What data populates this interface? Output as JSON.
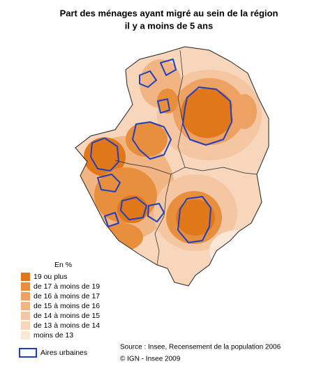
{
  "title": [
    "Part des ménages ayant migré au sein de la région",
    "il y a moins de 5 ans"
  ],
  "legend": {
    "title": "En %",
    "classes": [
      {
        "label": "19 ou plus",
        "color": "#e0781a"
      },
      {
        "label": "de 17 à moins de 19",
        "color": "#e88f3e"
      },
      {
        "label": "de 16 à moins de 17",
        "color": "#eda264"
      },
      {
        "label": "de 15 à moins de 16",
        "color": "#f1b583"
      },
      {
        "label": "de 14 à moins de 15",
        "color": "#f4c6a1"
      },
      {
        "label": "de 13 à moins de 14",
        "color": "#f7d6bb"
      },
      {
        "label": "moins de 13",
        "color": "#fbe7d6"
      }
    ],
    "urban": {
      "label": "Aires urbaines",
      "color": "#1f3fbf"
    }
  },
  "source": [
    "Source : Insee, Recensement de la population 2006",
    "© IGN - Insee 2009"
  ]
}
